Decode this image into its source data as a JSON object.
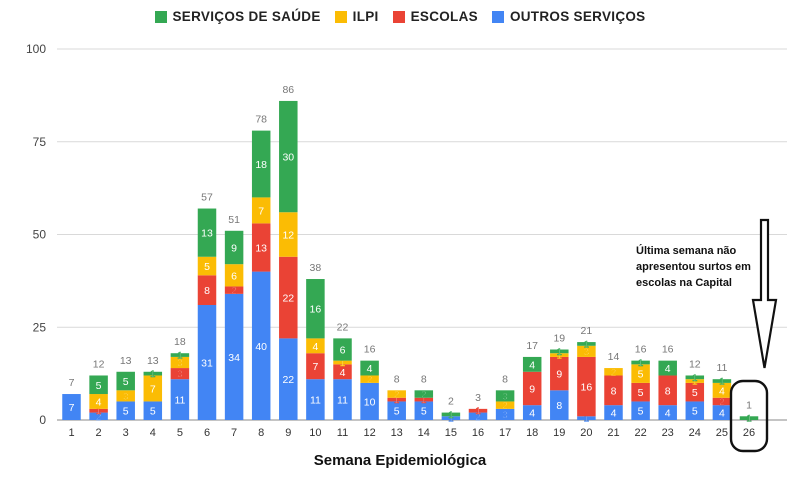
{
  "chart_data": {
    "type": "bar",
    "stacked": true,
    "xlabel": "Semana Epidemiológica",
    "ylabel": "",
    "ylim": [
      0,
      100
    ],
    "yticks": [
      0,
      25,
      50,
      75,
      100
    ],
    "grid": true,
    "legend_position": "top-center",
    "categories": [
      "1",
      "2",
      "3",
      "4",
      "5",
      "6",
      "7",
      "8",
      "9",
      "10",
      "11",
      "12",
      "13",
      "14",
      "15",
      "16",
      "17",
      "18",
      "19",
      "20",
      "21",
      "22",
      "23",
      "24",
      "25",
      "26"
    ],
    "totals": [
      7,
      12,
      13,
      13,
      18,
      57,
      51,
      78,
      86,
      38,
      22,
      16,
      8,
      8,
      2,
      3,
      8,
      17,
      19,
      21,
      14,
      16,
      16,
      12,
      11,
      1
    ],
    "series": [
      {
        "name": "OUTROS SERVIÇOS",
        "color": "#4285f4",
        "values": [
          7,
          2,
          5,
          5,
          11,
          31,
          34,
          40,
          22,
          11,
          11,
          10,
          5,
          5,
          1,
          2,
          3,
          4,
          8,
          1,
          4,
          5,
          4,
          5,
          4,
          0
        ]
      },
      {
        "name": "ESCOLAS",
        "color": "#ea4335",
        "values": [
          0,
          1,
          0,
          0,
          3,
          8,
          2,
          13,
          22,
          7,
          4,
          0,
          1,
          1,
          0,
          1,
          0,
          9,
          9,
          16,
          8,
          5,
          8,
          5,
          2,
          0
        ]
      },
      {
        "name": "ILPI",
        "color": "#fbbc04",
        "values": [
          0,
          4,
          3,
          7,
          3,
          5,
          6,
          7,
          12,
          4,
          1,
          2,
          2,
          0,
          0,
          0,
          2,
          0,
          1,
          3,
          2,
          5,
          0,
          1,
          4,
          0
        ]
      },
      {
        "name": "SERVIÇOS DE SAÚDE",
        "color": "#34a853",
        "values": [
          0,
          5,
          5,
          1,
          1,
          13,
          9,
          18,
          30,
          16,
          6,
          4,
          0,
          2,
          1,
          0,
          3,
          4,
          1,
          1,
          0,
          1,
          4,
          1,
          1,
          1
        ]
      }
    ],
    "annotation": [
      "Última semana não",
      "apresentou surtos em",
      "escolas na Capital"
    ]
  }
}
